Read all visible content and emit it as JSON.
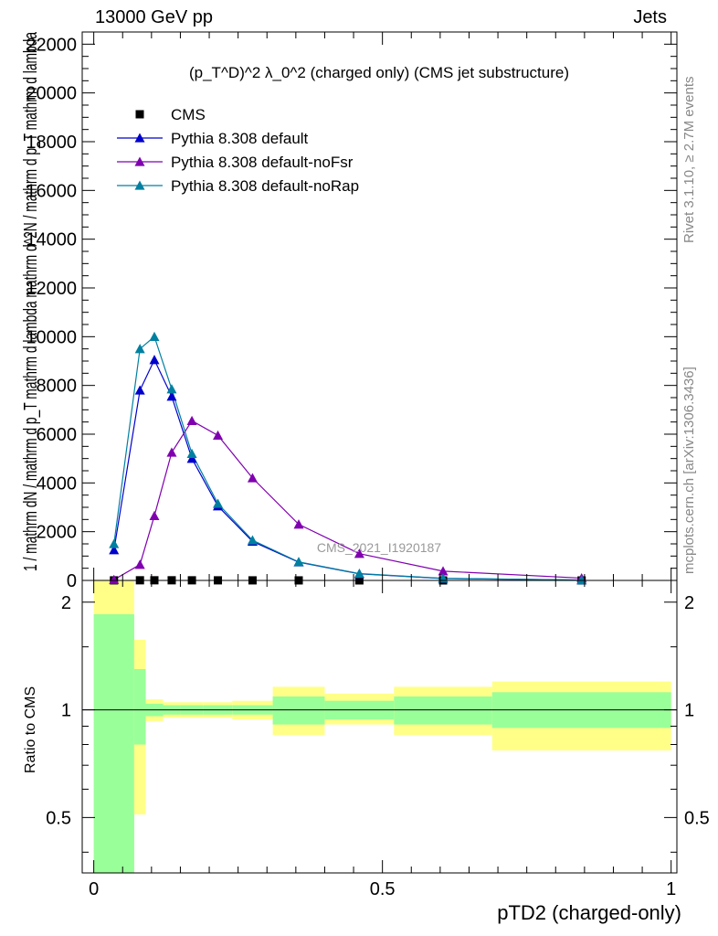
{
  "header": {
    "left": "13000 GeV pp",
    "right": "Jets"
  },
  "side_labels": {
    "rivet": "Rivet 3.1.10, ≥ 2.7M events",
    "mcplots": "mcplots.cern.ch [arXiv:1306.3436]"
  },
  "colors": {
    "cms": "#000000",
    "default": "#0000cc",
    "noFsr": "#8000b0",
    "noRap": "#0080a0",
    "band_green": "#99ff99",
    "band_yellow": "#ffff88"
  },
  "chart_data": [
    {
      "type": "line",
      "title": "(p_T^D)^2 λ_0^2 (charged only) (CMS jet substructure)",
      "ylabel": "1 / mathrm dN / mathrm d p_T mathrm d lambda  mathrm d^2N / mathrm d p_T mathrm d lambda",
      "watermark": "CMS_2021_I1920187",
      "xlim": [
        -0.02,
        1.01
      ],
      "ylim": [
        0,
        22500
      ],
      "y_ticks": [
        0,
        2000,
        4000,
        6000,
        8000,
        10000,
        12000,
        14000,
        16000,
        18000,
        20000,
        22000
      ],
      "y_tick_labels": [
        "0",
        "2000",
        "4000",
        "6000",
        "8000",
        "10000",
        "12000",
        "14000",
        "16000",
        "18000",
        "20000",
        "22000"
      ],
      "legend_position": "top-left",
      "series": [
        {
          "name": "CMS",
          "marker": "square",
          "x": [
            0.035,
            0.08,
            0.105,
            0.135,
            0.17,
            0.215,
            0.275,
            0.355,
            0.46,
            0.605,
            0.845
          ],
          "y": [
            3,
            6,
            6,
            6,
            5,
            4,
            3,
            2,
            1,
            0.5,
            0.2
          ]
        },
        {
          "name": "Pythia 8.308 default",
          "marker": "triangle",
          "x": [
            0.035,
            0.08,
            0.105,
            0.135,
            0.17,
            0.215,
            0.275,
            0.355,
            0.46,
            0.605,
            0.845
          ],
          "y": [
            1250,
            7800,
            9050,
            7550,
            5000,
            3050,
            1600,
            750,
            270,
            80,
            15
          ]
        },
        {
          "name": "Pythia 8.308 default-noFsr",
          "marker": "triangle",
          "x": [
            0.035,
            0.08,
            0.105,
            0.135,
            0.17,
            0.215,
            0.275,
            0.355,
            0.46,
            0.605,
            0.845
          ],
          "y": [
            30,
            650,
            2650,
            5250,
            6550,
            5950,
            4200,
            2300,
            1100,
            380,
            95
          ]
        },
        {
          "name": "Pythia 8.308 default-noRap",
          "marker": "triangle",
          "x": [
            0.035,
            0.08,
            0.105,
            0.135,
            0.17,
            0.215,
            0.275,
            0.355,
            0.46,
            0.605,
            0.845
          ],
          "y": [
            1500,
            9500,
            10000,
            7850,
            5200,
            3150,
            1650,
            760,
            280,
            85,
            15
          ]
        }
      ]
    },
    {
      "type": "area",
      "ylabel": "Ratio to CMS",
      "xlabel": "pTD2 (charged-only)",
      "xlim": [
        -0.02,
        1.01
      ],
      "ylim": [
        0.35,
        2.3
      ],
      "y_scale": "log",
      "reference_line": 1,
      "y_ticks": [
        0.5,
        1,
        2
      ],
      "y_tick_labels": [
        "0.5",
        "1",
        "2"
      ],
      "x_ticks": [
        0,
        0.5,
        1
      ],
      "x_tick_labels": [
        "0",
        "0.5",
        "1"
      ],
      "bins": [
        {
          "lo": 0.0,
          "hi": 0.07,
          "green": [
            0.35,
            1.85
          ],
          "yellow": [
            0.35,
            2.3
          ]
        },
        {
          "lo": 0.07,
          "hi": 0.09,
          "green": [
            0.8,
            1.3
          ],
          "yellow": [
            0.51,
            1.57
          ]
        },
        {
          "lo": 0.09,
          "hi": 0.12,
          "green": [
            0.96,
            1.04
          ],
          "yellow": [
            0.93,
            1.07
          ]
        },
        {
          "lo": 0.12,
          "hi": 0.15,
          "green": [
            0.97,
            1.03
          ],
          "yellow": [
            0.95,
            1.05
          ]
        },
        {
          "lo": 0.15,
          "hi": 0.19,
          "green": [
            0.97,
            1.03
          ],
          "yellow": [
            0.95,
            1.05
          ]
        },
        {
          "lo": 0.19,
          "hi": 0.24,
          "green": [
            0.97,
            1.03
          ],
          "yellow": [
            0.95,
            1.05
          ]
        },
        {
          "lo": 0.24,
          "hi": 0.31,
          "green": [
            0.97,
            1.03
          ],
          "yellow": [
            0.94,
            1.06
          ]
        },
        {
          "lo": 0.31,
          "hi": 0.4,
          "green": [
            0.91,
            1.09
          ],
          "yellow": [
            0.85,
            1.16
          ]
        },
        {
          "lo": 0.4,
          "hi": 0.52,
          "green": [
            0.94,
            1.06
          ],
          "yellow": [
            0.91,
            1.11
          ]
        },
        {
          "lo": 0.52,
          "hi": 0.69,
          "green": [
            0.91,
            1.09
          ],
          "yellow": [
            0.85,
            1.16
          ]
        },
        {
          "lo": 0.69,
          "hi": 1.0,
          "green": [
            0.89,
            1.12
          ],
          "yellow": [
            0.77,
            1.2
          ]
        }
      ]
    }
  ]
}
